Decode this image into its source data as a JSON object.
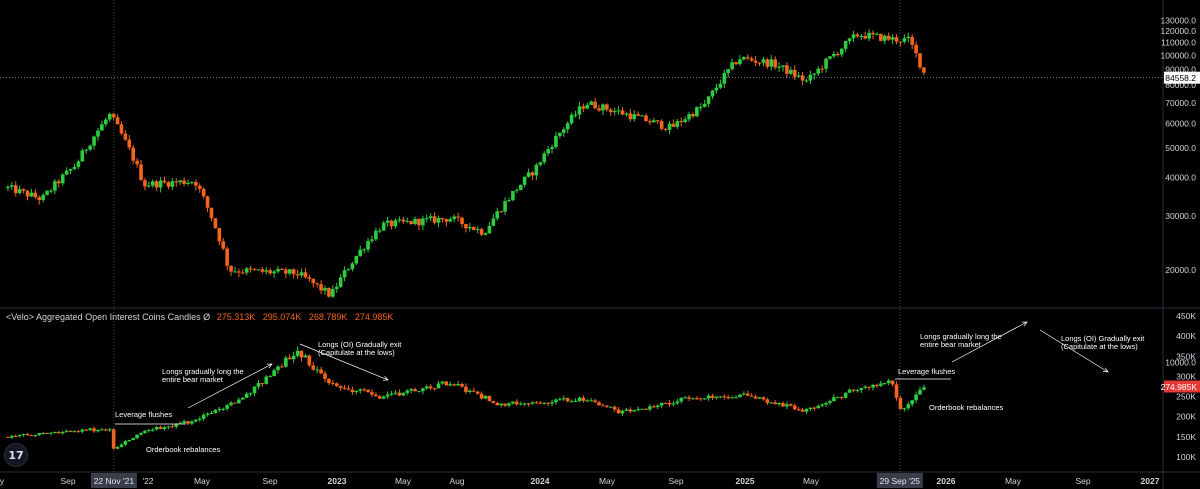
{
  "indicator": {
    "name": "<Velo> Aggregated Open Interest Coins Candles",
    "symbol": "Ø",
    "values": [
      "275.313K",
      "295.074K",
      "268.789K",
      "274.985K"
    ]
  },
  "logo_icon": "tradingview-logo-icon",
  "colors": {
    "background": "#000000",
    "up": "#2ecc40",
    "down": "#f5641e",
    "current_red": "#e53935",
    "axis_text": "#d1d4dc",
    "separator": "#2a2e39"
  },
  "chart_data": [
    {
      "type": "candlestick",
      "title": "",
      "unit": "USD",
      "y_ticks": [
        "130000.0",
        "120000.0",
        "110000.0",
        "100000.0",
        "90000.0",
        "80000.0",
        "70000.0",
        "60000.0",
        "50000.0",
        "40000.0",
        "30000.0",
        "20000.0",
        "10000.0"
      ],
      "ylim": [
        5000,
        132000
      ],
      "current_price": {
        "label": "84558.2",
        "value": 84558.2
      },
      "grid": false,
      "approximate_close_path": [
        {
          "t": "2021-05",
          "close": 37000
        },
        {
          "t": "2021-07",
          "close": 34000
        },
        {
          "t": "2021-09",
          "close": 44000
        },
        {
          "t": "2021-11",
          "close": 64000
        },
        {
          "t": "2022-01",
          "close": 38000
        },
        {
          "t": "2022-04",
          "close": 39000
        },
        {
          "t": "2022-06",
          "close": 20000
        },
        {
          "t": "2022-10",
          "close": 19500
        },
        {
          "t": "2022-12",
          "close": 16500
        },
        {
          "t": "2023-03",
          "close": 28000
        },
        {
          "t": "2023-07",
          "close": 29500
        },
        {
          "t": "2023-09",
          "close": 26500
        },
        {
          "t": "2023-12",
          "close": 42500
        },
        {
          "t": "2024-03",
          "close": 70000
        },
        {
          "t": "2024-08",
          "close": 58000
        },
        {
          "t": "2024-10",
          "close": 69000
        },
        {
          "t": "2024-12",
          "close": 98000
        },
        {
          "t": "2025-02",
          "close": 94000
        },
        {
          "t": "2025-04",
          "close": 82000
        },
        {
          "t": "2025-07",
          "close": 117000
        },
        {
          "t": "2025-09",
          "close": 113000
        },
        {
          "t": "2025-10",
          "close": 112000
        },
        {
          "t": "2025-11",
          "close": 84558
        }
      ]
    },
    {
      "type": "candlestick",
      "title": "<Velo> Aggregated Open Interest Coins Candles",
      "y_ticks": [
        "450K",
        "400K",
        "350K",
        "300K",
        "250K",
        "200K",
        "150K",
        "100K"
      ],
      "ylim": [
        80000,
        460000
      ],
      "current_value": {
        "label": "274.985K",
        "value": 274985
      },
      "approximate_close_path": [
        {
          "t": "2021-05",
          "close": 150000
        },
        {
          "t": "2021-09",
          "close": 165000
        },
        {
          "t": "2021-11",
          "close": 170000
        },
        {
          "t": "2021-11-22",
          "close": 120000
        },
        {
          "t": "2022-01",
          "close": 165000
        },
        {
          "t": "2022-04",
          "close": 190000
        },
        {
          "t": "2022-07",
          "close": 250000
        },
        {
          "t": "2022-10",
          "close": 365000
        },
        {
          "t": "2022-12",
          "close": 280000
        },
        {
          "t": "2023-03",
          "close": 250000
        },
        {
          "t": "2023-07",
          "close": 285000
        },
        {
          "t": "2023-10",
          "close": 230000
        },
        {
          "t": "2024-03",
          "close": 245000
        },
        {
          "t": "2024-05",
          "close": 210000
        },
        {
          "t": "2024-09",
          "close": 245000
        },
        {
          "t": "2024-12",
          "close": 255000
        },
        {
          "t": "2025-04",
          "close": 215000
        },
        {
          "t": "2025-07",
          "close": 270000
        },
        {
          "t": "2025-09",
          "close": 285000
        },
        {
          "t": "2025-09-29",
          "close": 215000
        },
        {
          "t": "2025-11",
          "close": 274985
        }
      ]
    }
  ],
  "x_axis": {
    "labels": [
      "y",
      "Sep",
      "'22",
      "May",
      "Sep",
      "2023",
      "May",
      "Aug",
      "2024",
      "May",
      "Sep",
      "2025",
      "May",
      "2026",
      "May",
      "Sep",
      "2027"
    ],
    "crosshair_labels": [
      "22 Nov '21",
      "29 Sep '25"
    ]
  },
  "annotations": {
    "leverage_flushes_1": "Leverage flushes",
    "orderbook_rebalances_1": "Orderbook rebalances",
    "longs_long_1": [
      "Longs gradually long the",
      "entire bear market"
    ],
    "longs_exit": [
      "Longs (OI) Gradually exit",
      "(Capitulate at the lows)"
    ],
    "leverage_flushes_2": "Leverage flushes",
    "orderbook_rebalances_2": "Orderbook rebalances",
    "longs_long_2": [
      "Longs gradually long the",
      "entire bear market"
    ],
    "longs_exit_2": [
      "Longs (OI) Gradually exit",
      "(Capitulate at the lows)"
    ]
  }
}
